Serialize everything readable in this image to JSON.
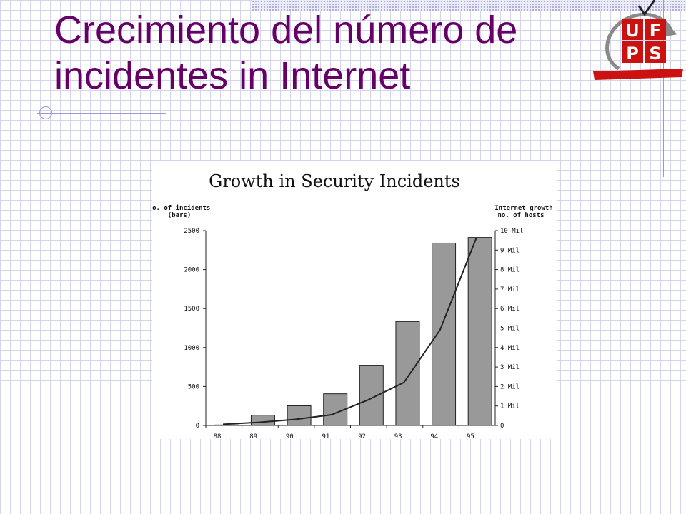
{
  "slide": {
    "title_line1": "Crecimiento del número de",
    "title_line2": "incidentes in Internet"
  },
  "logo": {
    "letters": [
      "U",
      "F",
      "P",
      "S"
    ]
  },
  "colors": {
    "title": "#660066",
    "bar": "#999999",
    "grid": "#d4d4ec",
    "logo_red": "#cc1111"
  },
  "chart_data": {
    "type": "bar",
    "title": "Growth in Security Incidents",
    "left_axis_label_line1": "no. of incidents",
    "left_axis_label_line2": "(bars)",
    "right_axis_label_line1": "Internet growth",
    "right_axis_label_line2": "no. of hosts",
    "categories": [
      "88",
      "89",
      "90",
      "91",
      "92",
      "93",
      "94",
      "95"
    ],
    "series": [
      {
        "type": "bar",
        "axis": "left",
        "values": [
          6,
          132,
          252,
          406,
          773,
          1334,
          2340,
          2412
        ]
      },
      {
        "type": "line",
        "axis": "right",
        "values": [
          0.06,
          0.16,
          0.31,
          0.55,
          1.3,
          2.2,
          4.9,
          9.6
        ]
      }
    ],
    "ylim": [
      0,
      2500
    ],
    "y_ticks": [
      "0",
      "500",
      "1000",
      "1500",
      "2000",
      "2500"
    ],
    "y2lim": [
      0,
      10
    ],
    "y2_ticks": [
      "0",
      "1 Mil",
      "2 Mil",
      "3 Mil",
      "4 Mil",
      "5 Mil",
      "6 Mil",
      "7 Mil",
      "8 Mil",
      "9 Mil",
      "10 Mil"
    ],
    "grid": false
  }
}
